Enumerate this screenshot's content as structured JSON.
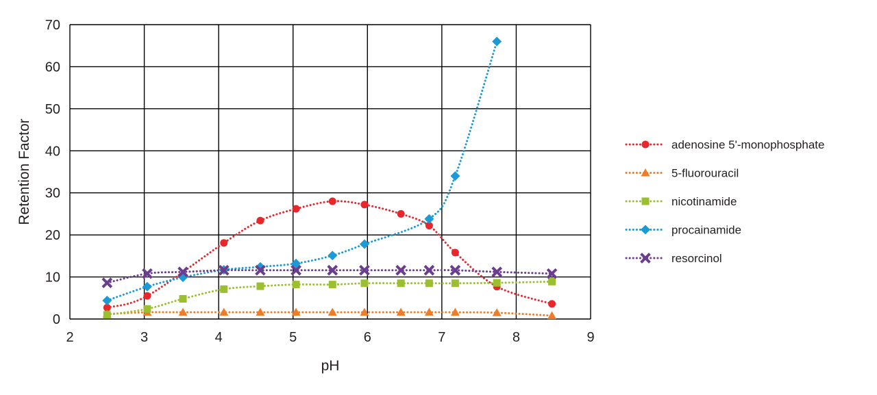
{
  "chart_data": {
    "type": "line",
    "title": "",
    "xlabel": "pH",
    "ylabel": "Retention Factor",
    "xlim": [
      2,
      9
    ],
    "ylim": [
      0,
      70
    ],
    "xticks": [
      2,
      3,
      4,
      5,
      6,
      7,
      8,
      9
    ],
    "yticks": [
      0,
      10,
      20,
      30,
      40,
      50,
      60,
      70
    ],
    "grid": true,
    "legend_position": "right",
    "series": [
      {
        "name": "adenosine 5'-monophosphate",
        "color": "#e8262c",
        "marker": "circle",
        "line_style": "dotted",
        "points": [
          [
            2.5,
            2.7
          ],
          [
            3.04,
            5.5
          ],
          [
            4.07,
            18.1
          ],
          [
            4.56,
            23.4
          ],
          [
            5.04,
            26.2
          ],
          [
            5.53,
            28.0
          ],
          [
            5.96,
            27.2
          ],
          [
            6.45,
            25.0
          ],
          [
            6.83,
            22.2
          ],
          [
            7.18,
            15.8
          ],
          [
            7.74,
            7.7
          ],
          [
            8.48,
            3.6
          ]
        ]
      },
      {
        "name": "5-fluorouracil",
        "color": "#ee7d2a",
        "marker": "triangle",
        "line_style": "dotted",
        "points": [
          [
            2.5,
            1.2
          ],
          [
            3.04,
            1.6
          ],
          [
            3.52,
            1.6
          ],
          [
            4.07,
            1.6
          ],
          [
            4.56,
            1.6
          ],
          [
            5.04,
            1.6
          ],
          [
            5.53,
            1.6
          ],
          [
            5.96,
            1.6
          ],
          [
            6.45,
            1.6
          ],
          [
            6.83,
            1.6
          ],
          [
            7.18,
            1.6
          ],
          [
            7.74,
            1.5
          ],
          [
            8.48,
            0.8
          ]
        ]
      },
      {
        "name": "nicotinamide",
        "color": "#9cbf32",
        "marker": "square",
        "line_style": "dotted",
        "points": [
          [
            2.5,
            1.0
          ],
          [
            3.04,
            2.4
          ],
          [
            3.52,
            4.8
          ],
          [
            4.07,
            7.1
          ],
          [
            4.56,
            7.8
          ],
          [
            5.04,
            8.2
          ],
          [
            5.53,
            8.2
          ],
          [
            5.96,
            8.5
          ],
          [
            6.45,
            8.5
          ],
          [
            6.83,
            8.5
          ],
          [
            7.18,
            8.5
          ],
          [
            7.74,
            8.6
          ],
          [
            8.48,
            8.9
          ]
        ]
      },
      {
        "name": "procainamide",
        "color": "#1d9ad6",
        "marker": "diamond",
        "line_style": "dotted",
        "points": [
          [
            2.5,
            4.4
          ],
          [
            3.04,
            7.7
          ],
          [
            3.52,
            9.9
          ],
          [
            4.07,
            11.7
          ],
          [
            4.56,
            12.4
          ],
          [
            5.04,
            13.2
          ],
          [
            5.53,
            15.1
          ],
          [
            5.96,
            17.8
          ],
          [
            6.83,
            23.8
          ],
          [
            7.18,
            34.0
          ],
          [
            7.74,
            66.0
          ]
        ]
      },
      {
        "name": "resorcinol",
        "color": "#6a3d8f",
        "marker": "x",
        "line_style": "dotted",
        "points": [
          [
            2.5,
            8.6
          ],
          [
            3.04,
            10.8
          ],
          [
            3.52,
            11.2
          ],
          [
            4.07,
            11.6
          ],
          [
            4.56,
            11.6
          ],
          [
            5.04,
            11.6
          ],
          [
            5.53,
            11.6
          ],
          [
            5.96,
            11.6
          ],
          [
            6.45,
            11.6
          ],
          [
            6.83,
            11.6
          ],
          [
            7.18,
            11.6
          ],
          [
            7.74,
            11.2
          ],
          [
            8.48,
            10.8
          ]
        ]
      }
    ]
  }
}
